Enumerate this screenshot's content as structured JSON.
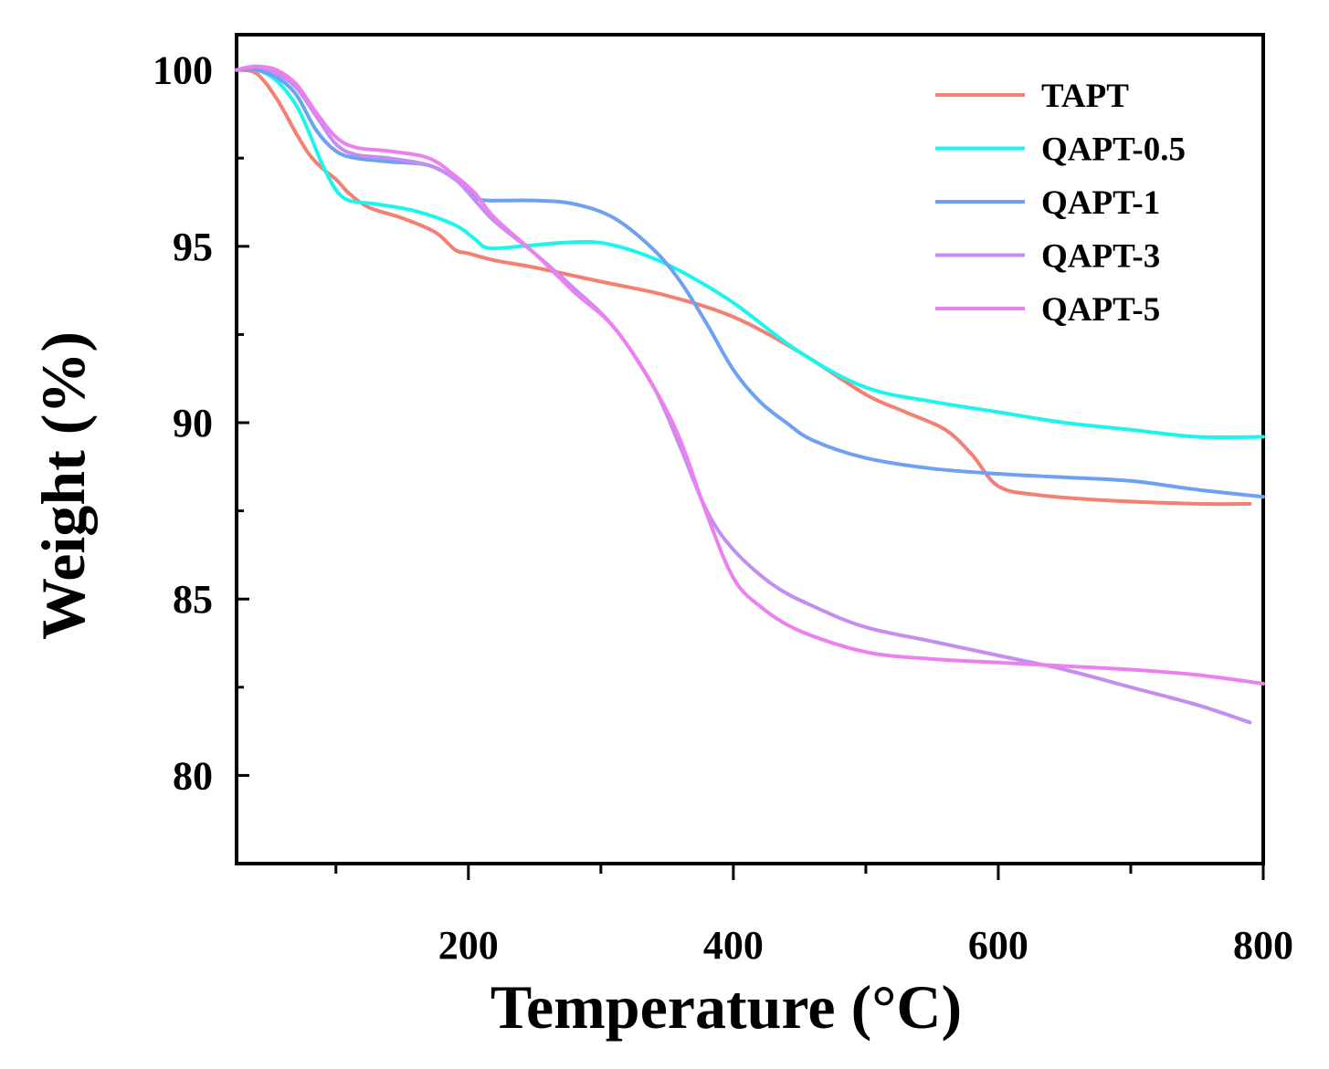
{
  "chart_data": {
    "type": "line",
    "title": "",
    "xlabel": "Temperature (°C)",
    "ylabel": "Weight (%)",
    "xlim": [
      25,
      800
    ],
    "ylim": [
      77.5,
      101
    ],
    "xticks": [
      200,
      400,
      600,
      800
    ],
    "xticks_minor": [
      100,
      300,
      500,
      700
    ],
    "yticks": [
      80,
      85,
      90,
      95,
      100
    ],
    "yticks_minor": [
      82.5,
      87.5,
      92.5,
      97.5
    ],
    "xtick_labels": [
      "200",
      "400",
      "600",
      "800"
    ],
    "ytick_labels": [
      "80",
      "85",
      "90",
      "95",
      "100"
    ],
    "grid": false,
    "legend_position": "top-right",
    "series": [
      {
        "name": "TAPT",
        "color": "#f47f72",
        "points": [
          [
            25,
            100
          ],
          [
            40,
            99.9
          ],
          [
            55,
            99.2
          ],
          [
            70,
            98.2
          ],
          [
            80,
            97.6
          ],
          [
            90,
            97.2
          ],
          [
            100,
            96.9
          ],
          [
            110,
            96.5
          ],
          [
            125,
            96.1
          ],
          [
            150,
            95.8
          ],
          [
            175,
            95.4
          ],
          [
            190,
            94.9
          ],
          [
            200,
            94.8
          ],
          [
            220,
            94.6
          ],
          [
            250,
            94.4
          ],
          [
            300,
            94.0
          ],
          [
            350,
            93.6
          ],
          [
            400,
            93.0
          ],
          [
            450,
            92.0
          ],
          [
            500,
            90.8
          ],
          [
            530,
            90.3
          ],
          [
            560,
            89.8
          ],
          [
            580,
            89.1
          ],
          [
            600,
            88.2
          ],
          [
            630,
            87.95
          ],
          [
            680,
            87.8
          ],
          [
            750,
            87.7
          ],
          [
            790,
            87.7
          ]
        ]
      },
      {
        "name": "QAPT-0.5",
        "color": "#1af5ee",
        "points": [
          [
            25,
            100
          ],
          [
            40,
            100
          ],
          [
            55,
            99.7
          ],
          [
            70,
            99.0
          ],
          [
            80,
            98.2
          ],
          [
            90,
            97.3
          ],
          [
            100,
            96.6
          ],
          [
            110,
            96.3
          ],
          [
            130,
            96.2
          ],
          [
            160,
            96.0
          ],
          [
            190,
            95.6
          ],
          [
            205,
            95.2
          ],
          [
            215,
            94.95
          ],
          [
            240,
            95.0
          ],
          [
            270,
            95.1
          ],
          [
            300,
            95.1
          ],
          [
            330,
            94.8
          ],
          [
            360,
            94.3
          ],
          [
            400,
            93.4
          ],
          [
            450,
            92.0
          ],
          [
            500,
            91.0
          ],
          [
            550,
            90.6
          ],
          [
            600,
            90.3
          ],
          [
            650,
            90.0
          ],
          [
            700,
            89.8
          ],
          [
            750,
            89.6
          ],
          [
            800,
            89.6
          ]
        ]
      },
      {
        "name": "QAPT-1",
        "color": "#6fa1f2",
        "points": [
          [
            25,
            100
          ],
          [
            40,
            100
          ],
          [
            55,
            99.8
          ],
          [
            70,
            99.3
          ],
          [
            85,
            98.3
          ],
          [
            100,
            97.7
          ],
          [
            115,
            97.5
          ],
          [
            140,
            97.4
          ],
          [
            170,
            97.3
          ],
          [
            190,
            96.9
          ],
          [
            205,
            96.4
          ],
          [
            215,
            96.3
          ],
          [
            250,
            96.3
          ],
          [
            280,
            96.2
          ],
          [
            310,
            95.8
          ],
          [
            340,
            94.9
          ],
          [
            360,
            94.0
          ],
          [
            380,
            92.8
          ],
          [
            400,
            91.5
          ],
          [
            420,
            90.6
          ],
          [
            440,
            90.0
          ],
          [
            460,
            89.5
          ],
          [
            500,
            89.0
          ],
          [
            550,
            88.7
          ],
          [
            600,
            88.55
          ],
          [
            650,
            88.45
          ],
          [
            700,
            88.35
          ],
          [
            750,
            88.1
          ],
          [
            800,
            87.9
          ]
        ]
      },
      {
        "name": "QAPT-3",
        "color": "#c48df1",
        "points": [
          [
            25,
            100
          ],
          [
            40,
            100.1
          ],
          [
            55,
            99.9
          ],
          [
            70,
            99.5
          ],
          [
            85,
            98.7
          ],
          [
            100,
            97.9
          ],
          [
            115,
            97.6
          ],
          [
            140,
            97.5
          ],
          [
            170,
            97.3
          ],
          [
            190,
            96.9
          ],
          [
            205,
            96.3
          ],
          [
            220,
            95.7
          ],
          [
            250,
            94.8
          ],
          [
            280,
            93.8
          ],
          [
            310,
            92.7
          ],
          [
            340,
            91.0
          ],
          [
            360,
            89.3
          ],
          [
            380,
            87.5
          ],
          [
            400,
            86.4
          ],
          [
            430,
            85.4
          ],
          [
            460,
            84.8
          ],
          [
            500,
            84.2
          ],
          [
            550,
            83.8
          ],
          [
            600,
            83.4
          ],
          [
            650,
            83.0
          ],
          [
            700,
            82.5
          ],
          [
            750,
            82.0
          ],
          [
            790,
            81.5
          ]
        ]
      },
      {
        "name": "QAPT-5",
        "color": "#ec80ee",
        "points": [
          [
            25,
            100
          ],
          [
            40,
            100.1
          ],
          [
            55,
            100.0
          ],
          [
            70,
            99.6
          ],
          [
            85,
            98.8
          ],
          [
            100,
            98.1
          ],
          [
            115,
            97.8
          ],
          [
            140,
            97.7
          ],
          [
            170,
            97.5
          ],
          [
            190,
            97.0
          ],
          [
            205,
            96.5
          ],
          [
            220,
            95.8
          ],
          [
            250,
            94.8
          ],
          [
            280,
            93.7
          ],
          [
            310,
            92.7
          ],
          [
            340,
            91.0
          ],
          [
            360,
            89.5
          ],
          [
            380,
            87.4
          ],
          [
            400,
            85.6
          ],
          [
            420,
            84.8
          ],
          [
            450,
            84.1
          ],
          [
            500,
            83.5
          ],
          [
            550,
            83.3
          ],
          [
            600,
            83.2
          ],
          [
            650,
            83.1
          ],
          [
            700,
            83.0
          ],
          [
            750,
            82.85
          ],
          [
            800,
            82.6
          ]
        ]
      }
    ]
  }
}
